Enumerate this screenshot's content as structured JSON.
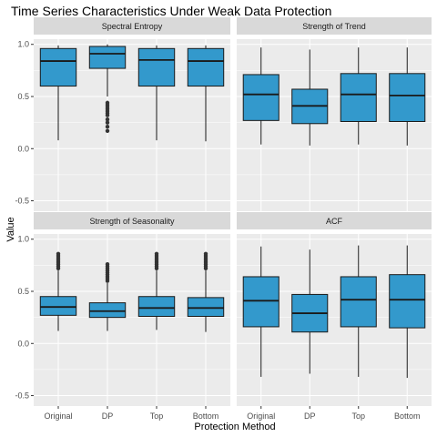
{
  "title": "Time Series Characteristics Under Weak Data Protection",
  "xlabel": "Protection Method",
  "ylabel": "Value",
  "colors": {
    "box_fill": "#3399CC",
    "panel_bg": "#EBEBEB",
    "strip_bg": "#D9D9D9",
    "grid": "#FFFFFF",
    "line": "#1A1A1A"
  },
  "chart_data": {
    "type": "boxplot",
    "categories": [
      "Original",
      "DP",
      "Top",
      "Bottom"
    ],
    "ylim": [
      -0.6,
      1.05
    ],
    "yticks": [
      -0.5,
      0.0,
      0.5,
      1.0
    ],
    "ytick_labels": [
      "-0.5",
      "0.0",
      "0.5",
      "1.0"
    ],
    "grid": true,
    "legend": "none",
    "facet_layout": "2x2",
    "panels": [
      {
        "title": "Spectral Entropy",
        "boxes": [
          {
            "category": "Original",
            "min": 0.08,
            "q1": 0.6,
            "median": 0.84,
            "q3": 0.96,
            "max": 0.99,
            "outliers": []
          },
          {
            "category": "DP",
            "min": 0.5,
            "q1": 0.77,
            "median": 0.91,
            "q3": 0.98,
            "max": 1.0,
            "outliers": [
              0.44,
              0.42,
              0.4,
              0.38,
              0.36,
              0.34,
              0.32,
              0.28,
              0.25,
              0.21,
              0.17
            ]
          },
          {
            "category": "Top",
            "min": 0.08,
            "q1": 0.6,
            "median": 0.85,
            "q3": 0.96,
            "max": 0.99,
            "outliers": []
          },
          {
            "category": "Bottom",
            "min": 0.07,
            "q1": 0.6,
            "median": 0.84,
            "q3": 0.96,
            "max": 0.99,
            "outliers": []
          }
        ]
      },
      {
        "title": "Strength of Trend",
        "boxes": [
          {
            "category": "Original",
            "min": 0.04,
            "q1": 0.27,
            "median": 0.52,
            "q3": 0.71,
            "max": 0.97,
            "outliers": []
          },
          {
            "category": "DP",
            "min": 0.03,
            "q1": 0.24,
            "median": 0.41,
            "q3": 0.57,
            "max": 0.95,
            "outliers": []
          },
          {
            "category": "Top",
            "min": 0.04,
            "q1": 0.26,
            "median": 0.52,
            "q3": 0.72,
            "max": 0.97,
            "outliers": []
          },
          {
            "category": "Bottom",
            "min": 0.03,
            "q1": 0.26,
            "median": 0.51,
            "q3": 0.72,
            "max": 0.97,
            "outliers": []
          }
        ]
      },
      {
        "title": "Strength of Seasonality",
        "boxes": [
          {
            "category": "Original",
            "min": 0.12,
            "q1": 0.27,
            "median": 0.35,
            "q3": 0.45,
            "max": 0.7,
            "outliers": [
              0.72,
              0.74,
              0.76,
              0.78,
              0.8,
              0.82,
              0.84,
              0.86
            ]
          },
          {
            "category": "DP",
            "min": 0.12,
            "q1": 0.25,
            "median": 0.31,
            "q3": 0.39,
            "max": 0.58,
            "outliers": [
              0.6,
              0.62,
              0.64,
              0.66,
              0.68,
              0.7,
              0.72,
              0.74,
              0.76
            ]
          },
          {
            "category": "Top",
            "min": 0.13,
            "q1": 0.26,
            "median": 0.34,
            "q3": 0.45,
            "max": 0.7,
            "outliers": [
              0.72,
              0.74,
              0.76,
              0.78,
              0.8,
              0.82,
              0.84,
              0.86
            ]
          },
          {
            "category": "Bottom",
            "min": 0.11,
            "q1": 0.26,
            "median": 0.34,
            "q3": 0.44,
            "max": 0.7,
            "outliers": [
              0.72,
              0.74,
              0.76,
              0.78,
              0.8,
              0.82,
              0.84,
              0.86
            ]
          }
        ]
      },
      {
        "title": "ACF",
        "boxes": [
          {
            "category": "Original",
            "min": -0.32,
            "q1": 0.16,
            "median": 0.41,
            "q3": 0.64,
            "max": 0.93,
            "outliers": []
          },
          {
            "category": "DP",
            "min": -0.29,
            "q1": 0.11,
            "median": 0.29,
            "q3": 0.47,
            "max": 0.9,
            "outliers": []
          },
          {
            "category": "Top",
            "min": -0.32,
            "q1": 0.16,
            "median": 0.42,
            "q3": 0.64,
            "max": 0.94,
            "outliers": []
          },
          {
            "category": "Bottom",
            "min": -0.33,
            "q1": 0.15,
            "median": 0.42,
            "q3": 0.66,
            "max": 0.94,
            "outliers": []
          }
        ]
      }
    ]
  }
}
